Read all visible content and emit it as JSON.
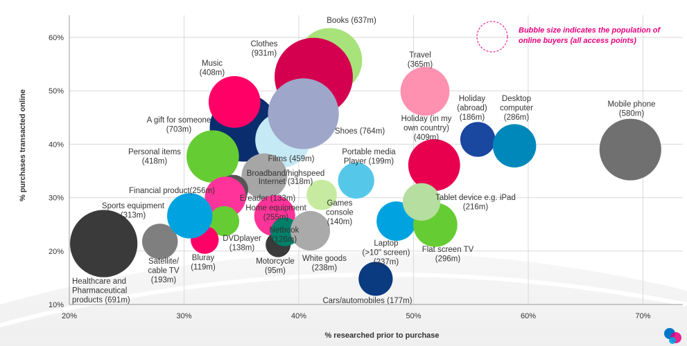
{
  "chart_data": {
    "type": "scatter",
    "subtype": "bubble",
    "xlabel": "% researched prior to purchase",
    "ylabel": "% purchases transacted online",
    "xlim": [
      20,
      73
    ],
    "ylim": [
      10,
      65
    ],
    "x_ticks": [
      "20%",
      "30%",
      "40%",
      "50%",
      "60%",
      "70%"
    ],
    "y_ticks": [
      "10%",
      "20%",
      "30%",
      "40%",
      "50%",
      "60%"
    ],
    "grid": true,
    "legend_note": "Bubble size indicates the population of online buyers (all access points)",
    "legend_note_lines": [
      "Bubble size indicates the population of",
      "online buyers (all access points)"
    ],
    "legend_placement": "top-right",
    "size_unit": "millions of online buyers",
    "series": [
      {
        "name": "Healthcare and Pharmaceutical products",
        "label_lines": [
          "Healthcare and",
          "Pharmaceutical",
          "products (691m)"
        ],
        "x": 23.0,
        "y": 21.4,
        "size": 691,
        "color": "#3a3a3a"
      },
      {
        "name": "Satellite/cable TV",
        "label_lines": [
          "Satellite/",
          "cable TV",
          "(193m)"
        ],
        "x": 27.9,
        "y": 21.8,
        "size": 193,
        "color": "#7f7f7f"
      },
      {
        "name": "Books",
        "label_lines": [
          "Books (637m)"
        ],
        "x": 42.7,
        "y": 55.7,
        "size": 637,
        "color": "#a8e27a"
      },
      {
        "name": "Clothes",
        "label_lines": [
          "Clothes",
          "(931m)"
        ],
        "x": 41.3,
        "y": 52.6,
        "size": 931,
        "color": "#d4004f"
      },
      {
        "name": "A gift for someone",
        "label_lines": [
          "A gift for someone",
          "(703m)"
        ],
        "x": 35.2,
        "y": 43.1,
        "size": 703,
        "color": "#0a2d6e"
      },
      {
        "name": "Films",
        "label_lines": [
          "Films (459m)"
        ],
        "x": 38.6,
        "y": 40.8,
        "size": 459,
        "color": "#c5e9f5"
      },
      {
        "name": "Shoes",
        "label_lines": [
          "Shoes (764m)"
        ],
        "x": 40.4,
        "y": 45.7,
        "size": 764,
        "color": "#9ea7c9"
      },
      {
        "name": "Music",
        "label_lines": [
          "Music",
          "(408m)"
        ],
        "x": 34.4,
        "y": 47.9,
        "size": 408,
        "color": "#ff0066"
      },
      {
        "name": "Personal items",
        "label_lines": [
          "Personal items",
          "(418m)"
        ],
        "x": 32.5,
        "y": 37.7,
        "size": 418,
        "color": "#66cc33"
      },
      {
        "name": "Broadband/highspeed Internet",
        "label_lines": [
          "Broadband/highspeed",
          "Internet (318m)"
        ],
        "x": 37.0,
        "y": 34.0,
        "size": 318,
        "color": "#a6a6a6"
      },
      {
        "name": "Ereader",
        "label_lines": [
          "Ereader (133m)"
        ],
        "x": 34.3,
        "y": 31.5,
        "size": 133,
        "color": "#555555"
      },
      {
        "name": "Financial product",
        "label_lines": [
          "Financial product(256m)"
        ],
        "x": 33.6,
        "y": 30.1,
        "size": 256,
        "color": "#ff3399"
      },
      {
        "name": "DVDplayer",
        "label_lines": [
          "DVDplayer",
          "(138m)"
        ],
        "x": 33.5,
        "y": 25.6,
        "size": 138,
        "color": "#66cc33"
      },
      {
        "name": "Bluray",
        "label_lines": [
          "Bluray",
          "(119m)"
        ],
        "x": 31.8,
        "y": 22.1,
        "size": 119,
        "color": "#ff0066"
      },
      {
        "name": "Sports equipment",
        "label_lines": [
          "Sports equipment",
          "(313m)"
        ],
        "x": 30.5,
        "y": 26.6,
        "size": 313,
        "color": "#00a3e0"
      },
      {
        "name": "Home equipment",
        "label_lines": [
          "Home equipment",
          "(255m)"
        ],
        "x": 37.9,
        "y": 26.6,
        "size": 255,
        "color": "#ff3399"
      },
      {
        "name": "Motorcycle",
        "label_lines": [
          "Motorcycle",
          "(95m)"
        ],
        "x": 38.2,
        "y": 21.2,
        "size": 95,
        "color": "#3a3a3a"
      },
      {
        "name": "Netbook",
        "label_lines": [
          "Netbook",
          "(126m)"
        ],
        "x": 38.8,
        "y": 23.6,
        "size": 126,
        "color": "#00806a"
      },
      {
        "name": "White goods",
        "label_lines": [
          "White goods",
          "(238m)"
        ],
        "x": 41.0,
        "y": 23.8,
        "size": 238,
        "color": "#aaaaaa"
      },
      {
        "name": "Games console",
        "label_lines": [
          "Games",
          "console",
          "(140m)"
        ],
        "x": 42.0,
        "y": 30.5,
        "size": 140,
        "color": "#c6eba0"
      },
      {
        "name": "Portable media Player",
        "label_lines": [
          "Portable media",
          "Player (199m)"
        ],
        "x": 45.0,
        "y": 33.2,
        "size": 199,
        "color": "#55c8ea"
      },
      {
        "name": "Cars/automobiles",
        "label_lines": [
          "Cars/automobiles (177m)"
        ],
        "x": 46.7,
        "y": 14.8,
        "size": 177,
        "color": "#0a3a80"
      },
      {
        "name": "Laptop (>10\" screen)",
        "label_lines": [
          "Laptop",
          "(>10\" screen)",
          "(237m)"
        ],
        "x": 48.5,
        "y": 25.6,
        "size": 237,
        "color": "#00a3e0"
      },
      {
        "name": "Travel",
        "label_lines": [
          "Travel",
          "(365m)"
        ],
        "x": 51.0,
        "y": 49.9,
        "size": 365,
        "color": "#ff91b0"
      },
      {
        "name": "Holiday (in my own country)",
        "label_lines": [
          "Holiday (in my",
          "own country)",
          "(409m)"
        ],
        "x": 51.8,
        "y": 36.1,
        "size": 409,
        "color": "#e8004f"
      },
      {
        "name": "Flat screen TV",
        "label_lines": [
          "Flat screen TV",
          "(296m)"
        ],
        "x": 51.9,
        "y": 24.9,
        "size": 296,
        "color": "#66cc33"
      },
      {
        "name": "Tablet device e.g. iPad",
        "label_lines": [
          "Tablet device e.g. iPad",
          "(216m)"
        ],
        "x": 50.7,
        "y": 29.2,
        "size": 216,
        "color": "#b5dea0"
      },
      {
        "name": "Holiday (abroad)",
        "label_lines": [
          "Holiday",
          "(abroad)",
          "(186m)"
        ],
        "x": 55.6,
        "y": 40.9,
        "size": 186,
        "color": "#1a47a0"
      },
      {
        "name": "Desktop computer",
        "label_lines": [
          "Desktop",
          "computer",
          "(286m)"
        ],
        "x": 58.8,
        "y": 39.7,
        "size": 286,
        "color": "#0088bb"
      },
      {
        "name": "Mobile phone",
        "label_lines": [
          "Mobile phone",
          "(580m)"
        ],
        "x": 68.9,
        "y": 39.0,
        "size": 580,
        "color": "#707070"
      }
    ]
  }
}
